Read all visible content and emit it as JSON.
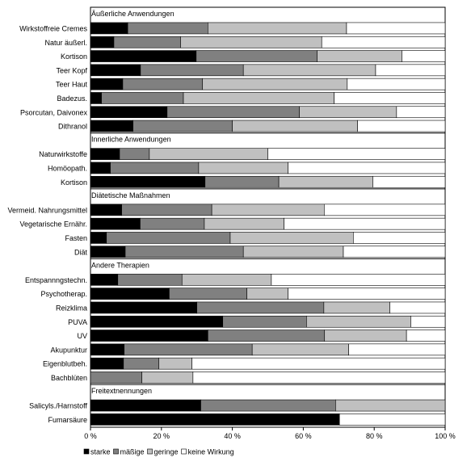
{
  "chart_data": {
    "type": "bar",
    "orientation": "horizontal",
    "stacked": "percent",
    "xlim": [
      0,
      100
    ],
    "x_ticks": [
      {
        "value": 0,
        "label": "0 %"
      },
      {
        "value": 20,
        "label": "20 %"
      },
      {
        "value": 40,
        "label": "40 %"
      },
      {
        "value": 60,
        "label": "60 %"
      },
      {
        "value": 80,
        "label": "80 %"
      },
      {
        "value": 100,
        "label": "100 %"
      }
    ],
    "grid": false,
    "legend_position": "bottom-left",
    "series": [
      {
        "name": "starke",
        "color": "#000000"
      },
      {
        "name": "mäßige",
        "color": "#808080"
      },
      {
        "name": "geringe",
        "color": "#c0c0c0"
      },
      {
        "name": "keine Wirkung",
        "color": "#ffffff"
      }
    ],
    "groups": [
      {
        "title": "Äußerliche Anwendungen",
        "rows": [
          {
            "label": "Wirkstoffreie Cremes",
            "values": [
              10.5,
              22.6,
              39.1,
              27.8
            ]
          },
          {
            "label": "Natur äußerl.",
            "values": [
              6.6,
              18.8,
              39.8,
              34.8
            ]
          },
          {
            "label": "Kortison",
            "values": [
              29.8,
              34.1,
              23.9,
              12.2
            ]
          },
          {
            "label": "Teer Kopf",
            "values": [
              14.1,
              29.0,
              37.3,
              19.6
            ]
          },
          {
            "label": "Teer Haut",
            "values": [
              9.1,
              22.5,
              40.8,
              27.6
            ]
          },
          {
            "label": "Badezus.",
            "values": [
              3.1,
              23.1,
              42.5,
              31.3
            ]
          },
          {
            "label": "Psorcutan, Daivonex",
            "values": [
              21.6,
              37.3,
              27.4,
              13.7
            ]
          },
          {
            "label": "Dithranol",
            "values": [
              12.0,
              28.0,
              35.3,
              24.7
            ]
          }
        ]
      },
      {
        "title": "Innerliche Anwendungen",
        "rows": [
          {
            "label": "Naturwirkstoffe",
            "values": [
              8.2,
              8.4,
              33.4,
              50.0
            ]
          },
          {
            "label": "Homöopath.",
            "values": [
              5.6,
              24.9,
              25.2,
              44.3
            ]
          },
          {
            "label": "Kortison",
            "values": [
              32.3,
              20.8,
              26.5,
              20.4
            ]
          }
        ]
      },
      {
        "title": "Diätetische Maßnahmen",
        "rows": [
          {
            "label": "Vermeid. Nahrungsmittel",
            "values": [
              8.8,
              25.4,
              31.7,
              34.1
            ]
          },
          {
            "label": "Vegetarische Ernähr.",
            "values": [
              14.0,
              18.1,
              22.5,
              45.4
            ]
          },
          {
            "label": "Fasten",
            "values": [
              4.5,
              34.9,
              34.7,
              25.9
            ]
          },
          {
            "label": "Diät",
            "values": [
              9.8,
              33.3,
              28.2,
              28.7
            ]
          }
        ]
      },
      {
        "title": "Andere Therapien",
        "rows": [
          {
            "label": "Entspannngstechn.",
            "values": [
              7.7,
              18.1,
              25.2,
              49.0
            ]
          },
          {
            "label": "Psychotherap.",
            "values": [
              22.2,
              21.9,
              11.6,
              44.3
            ]
          },
          {
            "label": "Reizklima",
            "values": [
              30.0,
              35.8,
              18.6,
              15.6
            ]
          },
          {
            "label": "PUVA",
            "values": [
              37.3,
              23.6,
              29.4,
              9.7
            ]
          },
          {
            "label": "UV",
            "values": [
              33.1,
              32.9,
              23.1,
              10.9
            ]
          },
          {
            "label": "Akupunktur",
            "values": [
              9.5,
              36.1,
              27.2,
              27.2
            ]
          },
          {
            "label": "Eigenblutbeh.",
            "values": [
              9.3,
              10.0,
              9.3,
              71.4
            ]
          },
          {
            "label": "Bachblüten",
            "values": [
              0.0,
              14.5,
              14.4,
              71.1
            ]
          }
        ]
      },
      {
        "title": "Freitextnennungen",
        "rows": [
          {
            "label": "Salicyls./Harnstoff",
            "values": [
              31.1,
              38.0,
              30.9,
              0.0
            ]
          },
          {
            "label": "Fumarsäure",
            "values": [
              70.2,
              0.0,
              0.0,
              29.8
            ]
          }
        ]
      }
    ]
  }
}
